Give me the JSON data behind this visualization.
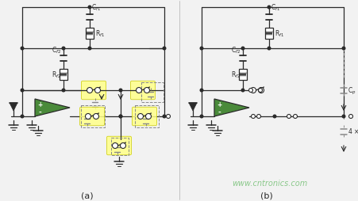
{
  "bg_color": "#f2f2f2",
  "watermark": "www.cntronics.com",
  "watermark_color": "#7fc47f",
  "label_a": "(a)",
  "label_b": "(b)",
  "line_color": "#2a2a2a",
  "amp_fill": "#4a8a3a",
  "switch_highlight": "#ffff88",
  "dashed_color": "#888888",
  "divider_color": "#bbbbbb"
}
